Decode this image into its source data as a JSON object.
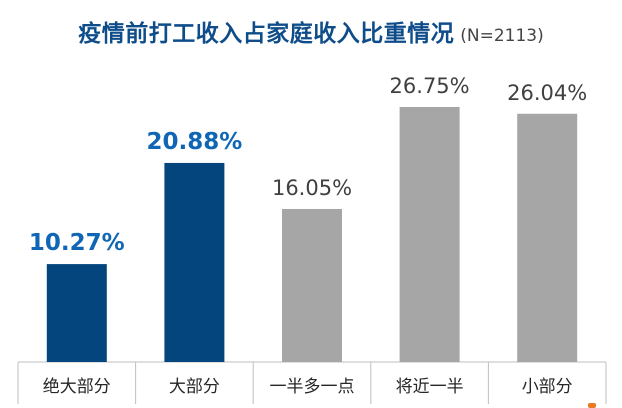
{
  "chart_data": {
    "type": "bar",
    "title": "疫情前打工收入占家庭收入比重情况",
    "subtitle": "(N=2113)",
    "categories": [
      "绝大部分",
      "大部分",
      "一半多一点",
      "将近一半",
      "小部分"
    ],
    "values": [
      10.27,
      20.88,
      16.05,
      26.75,
      26.04
    ],
    "value_labels": [
      "10.27%",
      "20.88%",
      "16.05%",
      "26.75%",
      "26.04%"
    ],
    "highlight": [
      true,
      true,
      false,
      false,
      false
    ],
    "ylim": [
      0,
      30
    ],
    "xlabel": "",
    "ylabel": "",
    "grid": false,
    "colors": {
      "highlight_bar": "#03457c",
      "highlight_label": "#0f66b5",
      "normal_bar": "#a6a6a6",
      "normal_label": "#404040",
      "axis": "#bfbfbf"
    }
  }
}
